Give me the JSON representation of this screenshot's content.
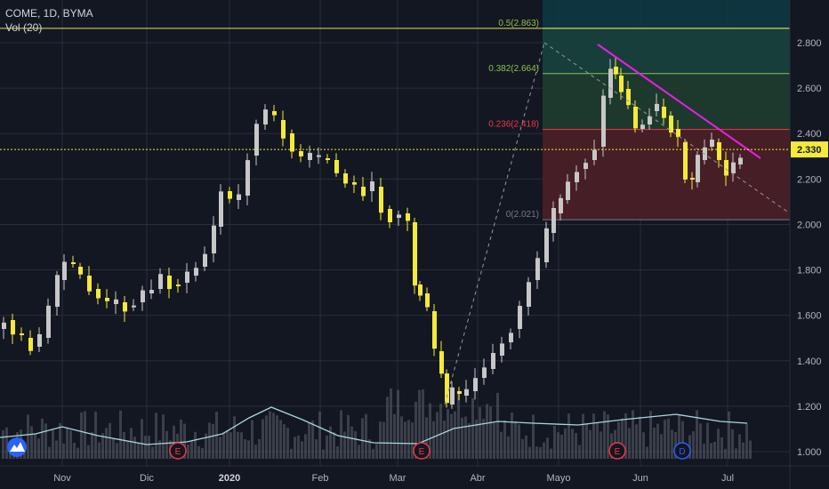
{
  "header": {
    "symbol": "COME, 1D, BYMA",
    "indicator": "Vol (20)"
  },
  "colors": {
    "background": "#131722",
    "grid": "#2a2e39",
    "text": "#b2b5be",
    "candle_up": "#f5e93a",
    "candle_down": "#c7c7c7",
    "volume": "#5d606b",
    "volume_ma": "#a9d7e0",
    "trendline": "#e91ee5",
    "price_line": "#f5e93a",
    "fib_top": "#0e3b44",
    "fib_mid": "#1f3d2f",
    "fib_low": "#4d1f26",
    "axis_bg": "#131722",
    "price_label_bg": "#f5e93a",
    "price_label_text": "#131722"
  },
  "price_axis": {
    "ticks": [
      "2.800",
      "2.600",
      "2.400",
      "2.200",
      "2.000",
      "1.800",
      "1.600",
      "1.400",
      "1.200",
      "1.000"
    ],
    "current_price": "2.330"
  },
  "time_axis": {
    "labels": [
      "Nov",
      "Dic",
      "2020",
      "Feb",
      "Mar",
      "Abr",
      "Mayo",
      "Jun",
      "Jul"
    ]
  },
  "events": [
    {
      "letter": "E",
      "label_idx": 1
    },
    {
      "letter": "E",
      "label_idx": 4
    },
    {
      "letter": "E",
      "label_idx": 6
    },
    {
      "letter": "D",
      "label_idx": 7
    }
  ],
  "fibonacci": {
    "levels": [
      {
        "ratio": "0.5",
        "price": 2.863,
        "label": "0.5(2.863)",
        "color": "#8bc34a"
      },
      {
        "ratio": "0.382",
        "price": 2.664,
        "label": "0.382(2.664)",
        "color": "#8bc34a"
      },
      {
        "ratio": "0.236",
        "price": 2.418,
        "label": "0.236(2.418)",
        "color": "#f23645"
      },
      {
        "ratio": "0",
        "price": 2.021,
        "label": "0(2.021)",
        "color": "#787b86"
      }
    ]
  },
  "chart_data": {
    "type": "candlestick",
    "title": "COME, 1D, BYMA",
    "ylim": [
      0.96,
      3.0
    ],
    "y_scale": "linear",
    "grid": true,
    "horizontal_line": 2.33,
    "trendline": {
      "from": [
        "2020-05-20",
        2.8
      ],
      "to": [
        "2020-07-12",
        2.3
      ]
    },
    "close_series": [
      {
        "date": "2019-10-01",
        "close": 1.62
      },
      {
        "date": "2019-10-10",
        "close": 1.48
      },
      {
        "date": "2019-10-18",
        "close": 1.43
      },
      {
        "date": "2019-10-25",
        "close": 1.72
      },
      {
        "date": "2019-11-01",
        "close": 1.86
      },
      {
        "date": "2019-11-08",
        "close": 1.78
      },
      {
        "date": "2019-11-15",
        "close": 1.66
      },
      {
        "date": "2019-11-22",
        "close": 1.64
      },
      {
        "date": "2019-11-29",
        "close": 1.63
      },
      {
        "date": "2019-12-06",
        "close": 1.66
      },
      {
        "date": "2019-12-13",
        "close": 1.68
      },
      {
        "date": "2019-12-20",
        "close": 1.72
      },
      {
        "date": "2019-12-27",
        "close": 1.75
      },
      {
        "date": "2020-01-03",
        "close": 2.08
      },
      {
        "date": "2020-01-10",
        "close": 2.28
      },
      {
        "date": "2020-01-17",
        "close": 2.45
      },
      {
        "date": "2020-01-24",
        "close": 2.38
      },
      {
        "date": "2020-01-31",
        "close": 2.26
      },
      {
        "date": "2020-02-07",
        "close": 2.32
      },
      {
        "date": "2020-02-14",
        "close": 2.22
      },
      {
        "date": "2020-02-21",
        "close": 2.15
      },
      {
        "date": "2020-02-28",
        "close": 2.12
      },
      {
        "date": "2020-03-06",
        "close": 2.02
      },
      {
        "date": "2020-03-10",
        "close": 1.72
      },
      {
        "date": "2020-03-16",
        "close": 1.38
      },
      {
        "date": "2020-03-20",
        "close": 1.18
      },
      {
        "date": "2020-03-27",
        "close": 1.26
      },
      {
        "date": "2020-04-03",
        "close": 1.32
      },
      {
        "date": "2020-04-10",
        "close": 1.48
      },
      {
        "date": "2020-04-17",
        "close": 1.58
      },
      {
        "date": "2020-04-24",
        "close": 1.75
      },
      {
        "date": "2020-05-01",
        "close": 1.98
      },
      {
        "date": "2020-05-08",
        "close": 2.18
      },
      {
        "date": "2020-05-15",
        "close": 2.28
      },
      {
        "date": "2020-05-20",
        "close": 2.72
      },
      {
        "date": "2020-05-27",
        "close": 2.55
      },
      {
        "date": "2020-06-03",
        "close": 2.38
      },
      {
        "date": "2020-06-10",
        "close": 2.46
      },
      {
        "date": "2020-06-17",
        "close": 2.3
      },
      {
        "date": "2020-06-24",
        "close": 2.18
      },
      {
        "date": "2020-07-01",
        "close": 2.24
      },
      {
        "date": "2020-07-08",
        "close": 2.33
      }
    ]
  }
}
